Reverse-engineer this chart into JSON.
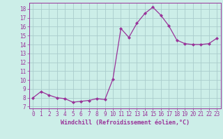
{
  "x": [
    0,
    1,
    2,
    3,
    4,
    5,
    6,
    7,
    8,
    9,
    10,
    11,
    12,
    13,
    14,
    15,
    16,
    17,
    18,
    19,
    20,
    21,
    22,
    23
  ],
  "y": [
    8.0,
    8.7,
    8.3,
    8.0,
    7.9,
    7.5,
    7.6,
    7.7,
    7.9,
    7.8,
    10.1,
    15.8,
    14.8,
    16.4,
    17.5,
    18.2,
    17.3,
    16.1,
    14.5,
    14.1,
    14.0,
    14.0,
    14.1,
    14.7
  ],
  "line_color": "#993399",
  "marker": "D",
  "marker_size": 2.0,
  "bg_color": "#cceee8",
  "grid_color": "#aacccc",
  "xlabel": "Windchill (Refroidissement éolien,°C)",
  "xlabel_color": "#993399",
  "ylabel_ticks": [
    7,
    8,
    9,
    10,
    11,
    12,
    13,
    14,
    15,
    16,
    17,
    18
  ],
  "xtick_labels": [
    "0",
    "1",
    "2",
    "3",
    "4",
    "5",
    "6",
    "7",
    "8",
    "9",
    "10",
    "11",
    "12",
    "13",
    "14",
    "15",
    "16",
    "17",
    "18",
    "19",
    "20",
    "21",
    "22",
    "23"
  ],
  "ylim": [
    6.8,
    18.7
  ],
  "xlim": [
    -0.5,
    23.5
  ],
  "tick_color": "#993399",
  "tick_label_color": "#993399",
  "tick_fontsize": 5.5,
  "xlabel_fontsize": 6.0
}
